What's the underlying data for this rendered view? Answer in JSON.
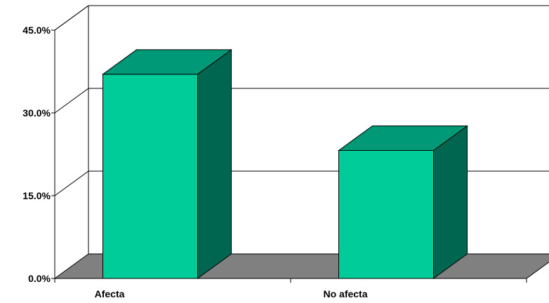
{
  "chart_data": {
    "type": "bar",
    "categories": [
      "Afecta",
      "No afecta"
    ],
    "values": [
      37.0,
      23.2
    ],
    "ylim": [
      0,
      45
    ],
    "yticks": [
      "0.0%",
      "15.0%",
      "30.0%",
      "45.0%"
    ],
    "ytick_values": [
      0,
      15,
      30,
      45
    ],
    "grid": true,
    "legend": "none",
    "three_d": true,
    "colors": {
      "bar_front": "#00cc99",
      "bar_top": "#009977",
      "bar_side": "#006650",
      "floor": "#808080",
      "axis": "#000000"
    }
  }
}
